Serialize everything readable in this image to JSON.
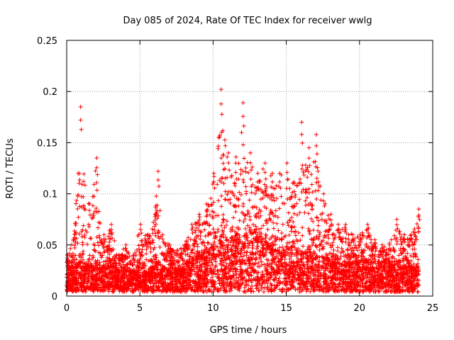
{
  "chart_data": {
    "type": "scatter",
    "title": "Day 085 of 2024, Rate Of TEC Index for receiver wwlg",
    "xlabel": "GPS time / hours",
    "ylabel": "ROTI / TECUs",
    "xlim": [
      0,
      25
    ],
    "ylim": [
      0,
      0.25
    ],
    "x_ticks": [
      "0",
      "5",
      "10",
      "15",
      "20",
      "25"
    ],
    "y_ticks": [
      "0",
      "0.05",
      "0.1",
      "0.15",
      "0.2",
      "0.25"
    ],
    "grid": true,
    "marker": "+",
    "color": "#ff0000",
    "series": [
      {
        "name": "ROTI",
        "envelope_x": [
          0,
          0.5,
          0.9,
          1.5,
          2.0,
          2.5,
          3.0,
          3.5,
          4.0,
          4.5,
          5.0,
          5.5,
          6.0,
          6.2,
          6.5,
          7.0,
          7.5,
          8.0,
          8.5,
          9.0,
          9.5,
          10.0,
          10.5,
          11.0,
          11.5,
          12.0,
          12.5,
          13.0,
          13.5,
          14.0,
          14.5,
          15.0,
          15.5,
          16.0,
          16.5,
          17.0,
          17.5,
          18.0,
          18.5,
          19.0,
          19.5,
          20.0,
          20.5,
          21.0,
          21.5,
          22.0,
          22.5,
          23.0,
          23.5,
          24.0
        ],
        "envelope_y": [
          0.04,
          0.06,
          0.185,
          0.09,
          0.135,
          0.06,
          0.07,
          0.04,
          0.05,
          0.04,
          0.07,
          0.06,
          0.08,
          0.122,
          0.06,
          0.05,
          0.045,
          0.05,
          0.07,
          0.08,
          0.09,
          0.12,
          0.202,
          0.14,
          0.13,
          0.189,
          0.14,
          0.12,
          0.13,
          0.12,
          0.12,
          0.13,
          0.11,
          0.17,
          0.145,
          0.158,
          0.1,
          0.08,
          0.07,
          0.07,
          0.06,
          0.06,
          0.07,
          0.055,
          0.05,
          0.05,
          0.075,
          0.06,
          0.06,
          0.085
        ],
        "base_y": [
          0.02,
          0.025,
          0.03,
          0.025,
          0.028,
          0.025,
          0.025,
          0.02,
          0.022,
          0.02,
          0.022,
          0.02,
          0.025,
          0.03,
          0.025,
          0.02,
          0.022,
          0.025,
          0.03,
          0.035,
          0.038,
          0.045,
          0.05,
          0.05,
          0.05,
          0.055,
          0.06,
          0.055,
          0.05,
          0.045,
          0.04,
          0.04,
          0.038,
          0.04,
          0.04,
          0.038,
          0.035,
          0.03,
          0.03,
          0.028,
          0.028,
          0.03,
          0.03,
          0.028,
          0.025,
          0.025,
          0.028,
          0.025,
          0.025,
          0.025
        ]
      }
    ]
  }
}
